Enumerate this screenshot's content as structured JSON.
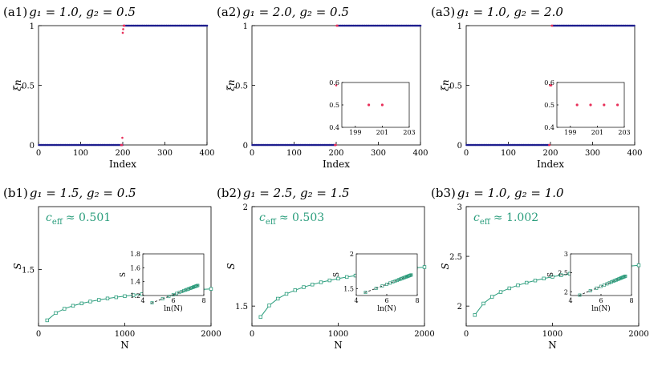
{
  "colors": {
    "blue": "#1f1f8f",
    "red": "#e8305a",
    "green": "#2a9d7c",
    "dash": "#222222"
  },
  "chart_data": [
    {
      "id": "a1",
      "type": "scatter",
      "title_prefix": "(a1)",
      "title": "g₁ = 1.0, g₂ = 0.5",
      "xlabel": "Index",
      "ylabel": "ξn",
      "xlim": [
        0,
        400
      ],
      "ylim": [
        0,
        1
      ],
      "xticks": [
        0,
        100,
        200,
        300,
        400
      ],
      "yticks": [
        0,
        0.5,
        1
      ],
      "series": [
        {
          "name": "lower",
          "color": "blue",
          "x_range": [
            1,
            199
          ],
          "step": 3,
          "y": 0
        },
        {
          "name": "upper",
          "color": "blue",
          "x_range": [
            202,
            400
          ],
          "step": 3,
          "y": 1
        },
        {
          "name": "edge",
          "color": "red",
          "x": [
            196,
            197,
            198,
            199,
            200,
            201,
            202,
            203,
            204
          ],
          "y": [
            0,
            0,
            0,
            0.06,
            0.94,
            0.97,
            1,
            1,
            1
          ]
        }
      ]
    },
    {
      "id": "a2",
      "type": "scatter",
      "title_prefix": "(a2)",
      "title": "g₁ = 2.0, g₂ = 0.5",
      "xlabel": "Index",
      "ylabel": "ξn",
      "xlim": [
        0,
        400
      ],
      "ylim": [
        0,
        1
      ],
      "xticks": [
        0,
        100,
        200,
        300,
        400
      ],
      "yticks": [
        0,
        0.5,
        1
      ],
      "series": [
        {
          "name": "lower",
          "color": "blue",
          "x_range": [
            1,
            199
          ],
          "step": 3,
          "y": 0
        },
        {
          "name": "upper",
          "color": "blue",
          "x_range": [
            202,
            400
          ],
          "step": 3,
          "y": 1
        },
        {
          "name": "edge",
          "color": "red",
          "x": [
            197,
            198,
            199,
            200,
            201,
            202,
            203
          ],
          "y": [
            0,
            0,
            0,
            0.5,
            1,
            1,
            1
          ]
        }
      ],
      "inset": {
        "xlim": [
          198,
          203
        ],
        "ylim": [
          0.4,
          0.6
        ],
        "xticks": [
          199,
          201,
          203
        ],
        "yticks": [
          0.4,
          0.5,
          0.6
        ],
        "points": {
          "x": [
            200,
            201
          ],
          "y": [
            0.5,
            0.5
          ]
        }
      }
    },
    {
      "id": "a3",
      "type": "scatter",
      "title_prefix": "(a3)",
      "title": "g₁ = 1.0, g₂ = 2.0",
      "xlabel": "Index",
      "ylabel": "ξn",
      "xlim": [
        0,
        400
      ],
      "ylim": [
        0,
        1
      ],
      "xticks": [
        0,
        100,
        200,
        300,
        400
      ],
      "yticks": [
        0,
        0.5,
        1
      ],
      "series": [
        {
          "name": "lower",
          "color": "blue",
          "x_range": [
            1,
            197
          ],
          "step": 3,
          "y": 0
        },
        {
          "name": "upper",
          "color": "blue",
          "x_range": [
            204,
            400
          ],
          "step": 3,
          "y": 1
        },
        {
          "name": "edge",
          "color": "red",
          "x": [
            197,
            198,
            199,
            200,
            201,
            202,
            203,
            204
          ],
          "y": [
            0,
            0,
            0.5,
            0.5,
            0.5,
            0.5,
            1,
            1
          ]
        }
      ],
      "inset": {
        "xlim": [
          198,
          203
        ],
        "ylim": [
          0.4,
          0.6
        ],
        "xticks": [
          199,
          201,
          203
        ],
        "yticks": [
          0.4,
          0.5,
          0.6
        ],
        "points": {
          "x": [
            199.5,
            200.5,
            201.5,
            202.5
          ],
          "y": [
            0.5,
            0.5,
            0.5,
            0.5
          ]
        }
      }
    },
    {
      "id": "b1",
      "type": "line",
      "title_prefix": "(b1)",
      "title": "g₁ = 1.5, g₂ = 0.5",
      "xlabel": "N",
      "ylabel": "S",
      "xlim": [
        0,
        2000
      ],
      "ylim": [
        1.05,
        2.0
      ],
      "xticks": [
        0,
        1000,
        2000
      ],
      "yticks": [
        1.5
      ],
      "ceff_symbol": "c",
      "ceff_sub": "eff",
      "ceff_value": "≈ 0.501",
      "ceff_num": 0.501,
      "s0": 1.095,
      "x": [
        100,
        200,
        300,
        400,
        500,
        600,
        700,
        800,
        900,
        1000,
        1100,
        1200,
        1300,
        1400,
        1500,
        1600,
        1700,
        1800,
        1900,
        2000
      ],
      "inset": {
        "xlim": [
          4,
          8
        ],
        "ylim": [
          1.2,
          1.8
        ],
        "xticks": [
          4,
          6,
          8
        ],
        "yticks": [
          1.2,
          1.4,
          1.6,
          1.8
        ],
        "xlabel": "ln(N)",
        "ylabel": "S"
      }
    },
    {
      "id": "b2",
      "type": "line",
      "title_prefix": "(b2)",
      "title": "g₁ = 2.5, g₂ = 1.5",
      "xlabel": "N",
      "ylabel": "S",
      "xlim": [
        0,
        2000
      ],
      "ylim": [
        1.4,
        2.0
      ],
      "xticks": [
        0,
        1000,
        2000
      ],
      "yticks": [
        1.5,
        2
      ],
      "ceff_symbol": "c",
      "ceff_sub": "eff",
      "ceff_value": "≈ 0.503",
      "ceff_num": 0.503,
      "s0": 1.445,
      "x": [
        100,
        200,
        300,
        400,
        500,
        600,
        700,
        800,
        900,
        1000,
        1100,
        1200,
        1300,
        1400,
        1500,
        1600,
        1700,
        1800,
        1900,
        2000
      ],
      "inset": {
        "xlim": [
          4,
          8
        ],
        "ylim": [
          1.4,
          2.0
        ],
        "xticks": [
          4,
          6,
          8
        ],
        "yticks": [
          1.5,
          2
        ],
        "xlabel": "ln(N)",
        "ylabel": "S"
      }
    },
    {
      "id": "b3",
      "type": "line",
      "title_prefix": "(b3)",
      "title": "g₁ = 1.0, g₂ = 1.0",
      "xlabel": "N",
      "ylabel": "S",
      "xlim": [
        0,
        2000
      ],
      "ylim": [
        1.8,
        3.0
      ],
      "xticks": [
        0,
        1000,
        2000
      ],
      "yticks": [
        2,
        2.5,
        3
      ],
      "ceff_symbol": "c",
      "ceff_sub": "eff",
      "ceff_value": "≈ 1.002",
      "ceff_num": 1.002,
      "s0": 1.91,
      "x": [
        100,
        200,
        300,
        400,
        500,
        600,
        700,
        800,
        900,
        1000,
        1100,
        1200,
        1300,
        1400,
        1500,
        1600,
        1700,
        1800,
        1900,
        2000
      ],
      "inset": {
        "xlim": [
          4,
          8
        ],
        "ylim": [
          1.9,
          3.0
        ],
        "xticks": [
          4,
          6,
          8
        ],
        "yticks": [
          2,
          2.5,
          3
        ],
        "xlabel": "ln(N)",
        "ylabel": "S"
      }
    }
  ]
}
